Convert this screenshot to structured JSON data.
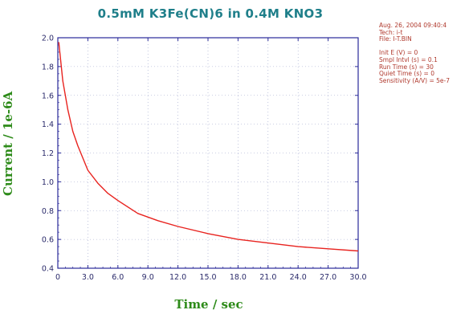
{
  "chart_data": {
    "type": "line",
    "title": "0.5mM K3Fe(CN)6 in 0.4M KNO3",
    "xlabel": "Time / sec",
    "ylabel": "Current / 1e-6A",
    "xlim": [
      0,
      30
    ],
    "ylim": [
      0.4,
      2.0
    ],
    "xticks": [
      "0",
      "3.0",
      "6.0",
      "9.0",
      "12.0",
      "15.0",
      "18.0",
      "21.0",
      "24.0",
      "27.0",
      "30.0"
    ],
    "yticks": [
      "0.4",
      "0.6",
      "0.8",
      "1.0",
      "1.2",
      "1.4",
      "1.6",
      "1.8",
      "2.0"
    ],
    "grid": true,
    "series": [
      {
        "color": "#e8231f",
        "x": [
          0.1,
          0.5,
          1,
          1.5,
          2,
          3,
          4,
          5,
          6,
          8,
          10,
          12,
          15,
          18,
          21,
          24,
          27,
          30
        ],
        "y": [
          1.97,
          1.7,
          1.5,
          1.35,
          1.25,
          1.08,
          0.99,
          0.92,
          0.87,
          0.78,
          0.73,
          0.69,
          0.64,
          0.6,
          0.575,
          0.55,
          0.535,
          0.52
        ]
      }
    ]
  },
  "info_lines": [
    "Aug. 26, 2004   09:40:4",
    "Tech: i-t",
    "File: I-T.BIN",
    "",
    "Init E (V) = 0",
    "Smpl Intvl (s) = 0.1",
    "Run Time (s) = 30",
    "Quiet Time (s) = 0",
    "Sensitivity (A/V) = 5e-7"
  ],
  "colors": {
    "title": "#1f7f8a",
    "axis_labels": "#2e8b1a",
    "axes": "#2a2a9a",
    "curve": "#e8231f",
    "info": "#b03a2e"
  }
}
